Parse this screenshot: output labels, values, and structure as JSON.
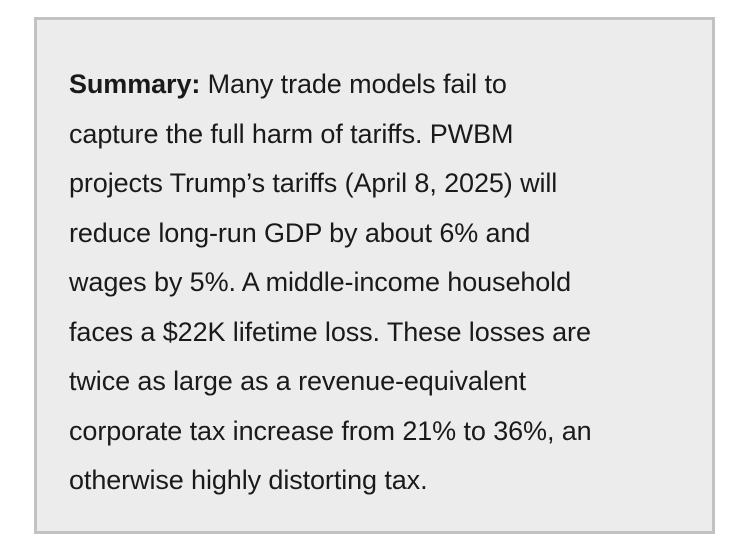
{
  "summary": {
    "label": "Summary:",
    "lines": [
      " Many trade models fail to",
      "capture the full harm of tariffs. PWBM",
      "projects Trump’s tariffs (April 8, 2025) will",
      "reduce long-run GDP by about 6% and",
      "wages by 5%. A middle-income household",
      "faces a $22K lifetime loss. These losses are",
      "twice as large as a revenue-equivalent",
      "corporate tax increase from 21% to 36%, an",
      "otherwise highly distorting tax."
    ]
  },
  "colors": {
    "box_background": "#ececec",
    "box_border": "#c2c2c2",
    "text": "#1a1a1a"
  }
}
